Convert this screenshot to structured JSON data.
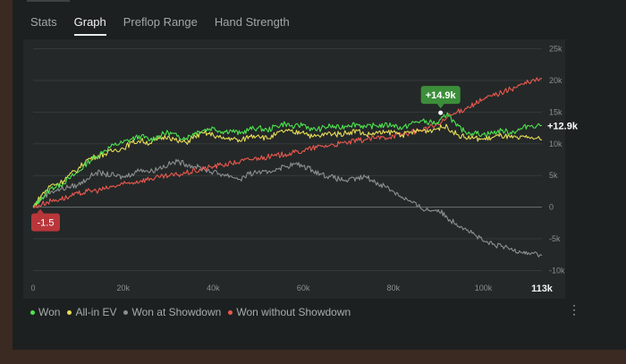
{
  "tabs": [
    {
      "label": "Stats"
    },
    {
      "label": "Graph"
    },
    {
      "label": "Preflop Range"
    },
    {
      "label": "Hand Strength"
    }
  ],
  "active_tab": 1,
  "chart_data": {
    "type": "line",
    "xlim": [
      0,
      113
    ],
    "ylim": [
      -10.5,
      25.5
    ],
    "x_ticks": [
      0,
      20,
      40,
      60,
      80,
      100
    ],
    "x_tick_labels": [
      "0",
      "20k",
      "40k",
      "60k",
      "80k",
      "100k"
    ],
    "x_end_label": "113k",
    "y_ticks": [
      25,
      20,
      15,
      10,
      5,
      0,
      -5,
      -10
    ],
    "y_tick_labels": [
      "25k",
      "20k",
      "15k",
      "10k",
      "5k",
      "0",
      "-5k",
      "-10k"
    ],
    "series": [
      {
        "name": "Won",
        "color": "#4ee34e",
        "x": [
          0,
          2,
          4,
          6,
          8,
          10,
          12,
          14,
          16,
          18,
          20,
          22,
          24,
          26,
          28,
          30,
          32,
          34,
          36,
          38,
          40,
          42,
          44,
          46,
          48,
          50,
          52,
          54,
          56,
          58,
          60,
          62,
          64,
          66,
          68,
          70,
          72,
          74,
          76,
          78,
          80,
          82,
          84,
          86,
          88,
          90,
          92,
          94,
          96,
          98,
          100,
          102,
          104,
          106,
          108,
          110,
          113
        ],
        "y": [
          0,
          1.5,
          3,
          3.5,
          4.5,
          5.5,
          7,
          8,
          9,
          9.8,
          10.2,
          10.8,
          11.2,
          10.6,
          11.3,
          11.8,
          11.2,
          10.9,
          11.8,
          12.2,
          12.5,
          11.9,
          12.1,
          11.6,
          12.3,
          12.5,
          12.1,
          12.8,
          13.2,
          12.6,
          13.1,
          12.2,
          12.4,
          12.8,
          12.5,
          13.0,
          13.1,
          12.6,
          12.9,
          12.9,
          13.0,
          12.4,
          13.2,
          13.6,
          13.4,
          13.2,
          14.9,
          12.8,
          11.9,
          11.7,
          11.5,
          11.7,
          12.1,
          11.8,
          12.2,
          12.9,
          12.9
        ]
      },
      {
        "name": "All-in EV",
        "color": "#e6dc55",
        "x": [
          0,
          2,
          4,
          6,
          8,
          10,
          12,
          14,
          16,
          18,
          20,
          22,
          24,
          26,
          28,
          30,
          32,
          34,
          36,
          38,
          40,
          42,
          44,
          46,
          48,
          50,
          52,
          54,
          56,
          58,
          60,
          62,
          64,
          66,
          68,
          70,
          72,
          74,
          76,
          78,
          80,
          82,
          84,
          86,
          88,
          90,
          92,
          94,
          96,
          98,
          100,
          102,
          104,
          106,
          108,
          110,
          113
        ],
        "y": [
          0,
          2,
          3.5,
          3.8,
          5,
          6,
          7.5,
          8,
          8.4,
          9,
          9.3,
          10.2,
          10.5,
          10.1,
          10.8,
          11.2,
          10.4,
          10.2,
          11.2,
          11.7,
          11.4,
          10.8,
          10.9,
          10.4,
          11.2,
          11.4,
          10.8,
          11.5,
          12.1,
          11.7,
          12.0,
          11.1,
          11.3,
          11.7,
          11.5,
          11.8,
          12.1,
          11.4,
          11.7,
          11.7,
          11.9,
          11.4,
          11.8,
          12.1,
          12.1,
          12.5,
          12.7,
          11.5,
          11.0,
          10.9,
          10.7,
          11.0,
          11.3,
          11.0,
          10.8,
          11.1,
          10.6
        ]
      },
      {
        "name": "Won at Showdown",
        "color": "#8c8f8f",
        "x": [
          0,
          2,
          4,
          6,
          8,
          10,
          12,
          14,
          16,
          18,
          20,
          22,
          24,
          26,
          28,
          30,
          32,
          34,
          36,
          38,
          40,
          42,
          44,
          46,
          48,
          50,
          52,
          54,
          56,
          58,
          60,
          62,
          64,
          66,
          68,
          70,
          72,
          74,
          76,
          78,
          80,
          82,
          84,
          86,
          88,
          90,
          92,
          94,
          96,
          98,
          100,
          102,
          104,
          106,
          108,
          110,
          113
        ],
        "y": [
          0,
          1.5,
          2.5,
          2.8,
          3.2,
          3.5,
          4.5,
          5.5,
          5.2,
          5.0,
          4.7,
          5.3,
          6.0,
          5.6,
          6.2,
          6.7,
          7.2,
          6.8,
          6.4,
          6.0,
          5.5,
          5.2,
          4.9,
          4.4,
          5.2,
          5.6,
          5.3,
          6.1,
          6.4,
          6.8,
          6.5,
          5.9,
          5.2,
          4.8,
          4.4,
          4.2,
          4.5,
          4.8,
          3.9,
          3.4,
          2.5,
          1.6,
          0.8,
          -0.1,
          -0.5,
          -0.4,
          -1.7,
          -2.6,
          -3.3,
          -4.3,
          -5.4,
          -5.9,
          -6.2,
          -6.6,
          -6.9,
          -7.2,
          -7.6
        ]
      },
      {
        "name": "Won without Showdown",
        "color": "#e9584f",
        "x": [
          0,
          2,
          4,
          6,
          8,
          10,
          12,
          14,
          16,
          18,
          20,
          22,
          24,
          26,
          28,
          30,
          32,
          34,
          36,
          38,
          40,
          42,
          44,
          46,
          48,
          50,
          52,
          54,
          56,
          58,
          60,
          62,
          64,
          66,
          68,
          70,
          72,
          74,
          76,
          78,
          80,
          82,
          84,
          86,
          88,
          90,
          92,
          94,
          96,
          98,
          100,
          102,
          104,
          106,
          108,
          110,
          113
        ],
        "y": [
          0,
          0.5,
          1,
          1.3,
          1.6,
          2.1,
          2.5,
          2.6,
          2.9,
          3.3,
          3.6,
          3.9,
          4.2,
          4.5,
          4.7,
          4.9,
          5.1,
          5.4,
          5.7,
          6.1,
          6.4,
          6.7,
          6.9,
          7.2,
          7.5,
          7.8,
          7.9,
          8.1,
          8.4,
          8.6,
          8.9,
          9.3,
          9.6,
          9.8,
          10.0,
          10.2,
          10.5,
          10.7,
          10.9,
          11.0,
          11.3,
          11.5,
          11.8,
          12.2,
          12.6,
          13.0,
          14.2,
          14.9,
          15.6,
          16.3,
          17.0,
          17.6,
          18.1,
          18.6,
          19.2,
          19.7,
          20.3
        ]
      }
    ],
    "annotations": [
      {
        "text": "+14.9k",
        "x": 90.5,
        "y": 14.9,
        "color": "#3c8f3a"
      },
      {
        "text": "-1.5",
        "x": 0,
        "y": 0,
        "color": "#b8363a"
      }
    ],
    "end_label": {
      "text": "+12.9k",
      "y": 12.9
    },
    "legend_position": "bottom-left"
  }
}
